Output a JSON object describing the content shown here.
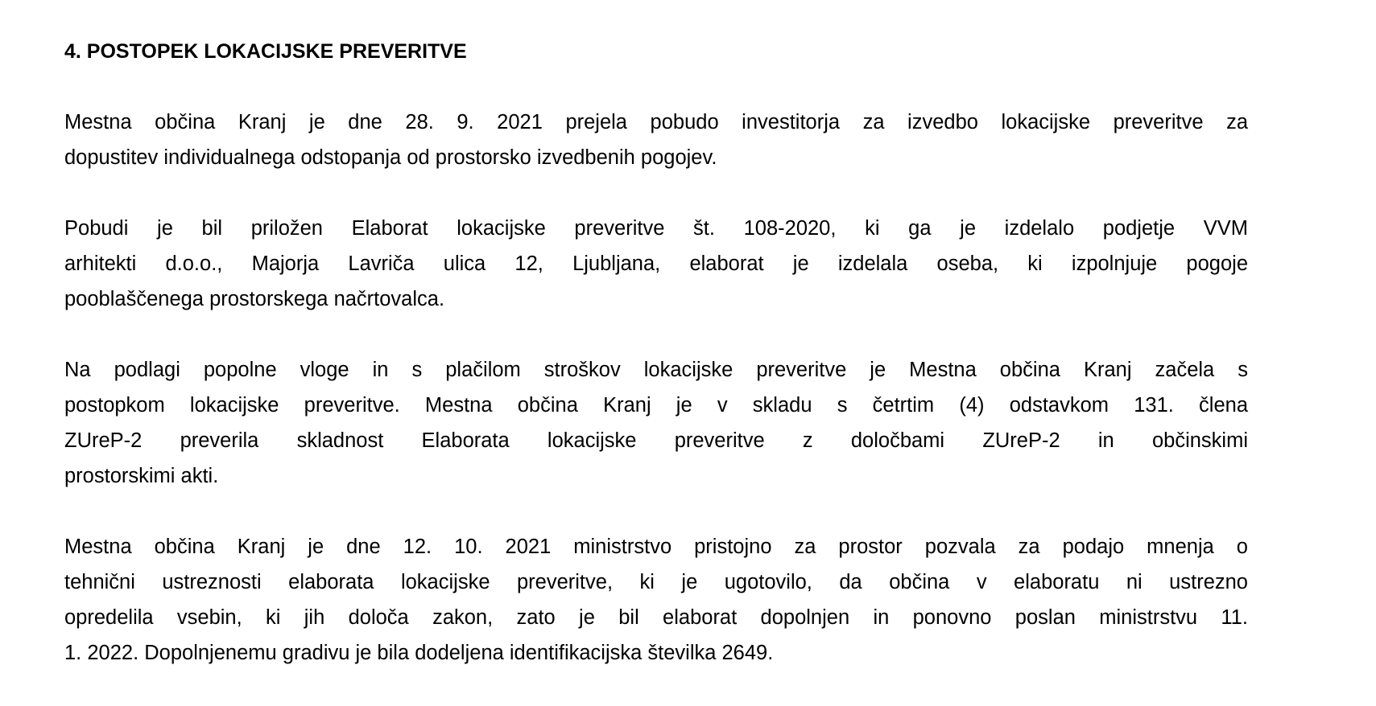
{
  "document": {
    "heading": "4. POSTOPEK LOKACIJSKE PREVERITVE",
    "paragraphs": [
      {
        "lines": [
          "Mestna občina Kranj je dne 28. 9. 2021 prejela pobudo investitorja za izvedbo lokacijske preveritve za",
          "dopustitev individualnega odstopanja od prostorsko izvedbenih pogojev."
        ]
      },
      {
        "lines": [
          "Pobudi je bil priložen Elaborat lokacijske preveritve št. 108-2020, ki ga je izdelalo podjetje VVM",
          "arhitekti d.o.o., Majorja Lavriča ulica 12, Ljubljana, elaborat je izdelala oseba, ki izpolnjuje pogoje",
          "pooblaščenega prostorskega načrtovalca."
        ]
      },
      {
        "lines": [
          "Na podlagi popolne vloge in s plačilom stroškov lokacijske preveritve je Mestna občina Kranj začela s",
          "postopkom lokacijske preveritve. Mestna občina Kranj je v skladu s četrtim (4) odstavkom 131. člena",
          "ZUreP-2 preverila skladnost Elaborata lokacijske preveritve z določbami ZUreP-2 in občinskimi",
          "prostorskimi akti."
        ]
      },
      {
        "lines": [
          "Mestna občina Kranj je dne 12. 10. 2021 ministrstvo pristojno za prostor pozvala za podajo mnenja o",
          "tehnični ustreznosti elaborata lokacijske preveritve, ki je ugotovilo, da občina v elaboratu ni ustrezno",
          "opredelila vsebin, ki jih določa zakon, zato je bil elaborat dopolnjen in ponovno poslan ministrstvu 11.",
          "1. 2022. Dopolnjenemu gradivu je bila dodeljena identifikacijska številka 2649."
        ]
      }
    ]
  }
}
